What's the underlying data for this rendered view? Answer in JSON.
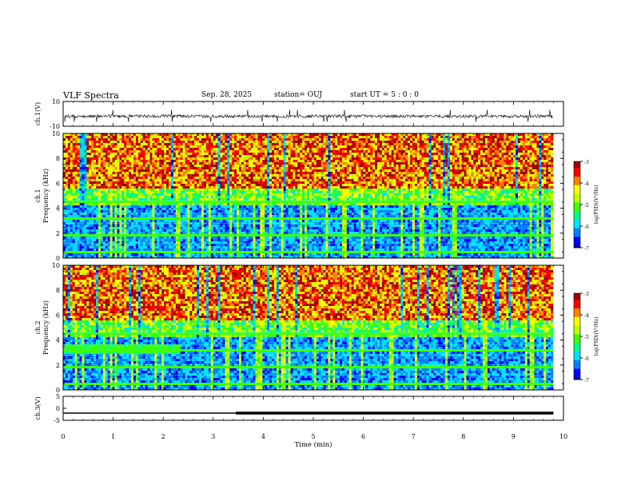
{
  "header": {
    "title": "VLF Spectra",
    "date": "Sep. 28, 2025",
    "station": "station= OUJ",
    "start_ut": "start  UT =   5 : 0  : 0"
  },
  "chart_data": [
    {
      "type": "line",
      "id": "ch1-waveform",
      "ylabel": "ch.1(V)",
      "ylim": [
        -10,
        10
      ],
      "yticks": [
        "10",
        "-10"
      ],
      "xlim": [
        0,
        10
      ],
      "note": "dense noisy waveform around ~0 V with sharp spikes"
    },
    {
      "type": "heatmap",
      "id": "ch1-spectrogram",
      "ylabel": "ch.1\nFrequency (kHz)",
      "ylabel_lines": [
        "ch.1",
        "Frequency (kHz)"
      ],
      "ylim": [
        0,
        10
      ],
      "yticks": [
        "0",
        "2",
        "4",
        "6",
        "8",
        "10"
      ],
      "xlim": [
        0,
        10
      ],
      "colorbar": {
        "label": "log(PSD)(V²/Hz)",
        "range": [
          -7,
          -3
        ],
        "ticks": [
          "-3",
          "-4",
          "-5",
          "-6",
          "-7"
        ]
      }
    },
    {
      "type": "heatmap",
      "id": "ch2-spectrogram",
      "ylabel_lines": [
        "ch.2",
        "Frequency (kHz)"
      ],
      "ylim": [
        0,
        10
      ],
      "yticks": [
        "0",
        "2",
        "4",
        "6",
        "8",
        "10"
      ],
      "xlim": [
        0,
        10
      ],
      "colorbar": {
        "label": "log(PSD)(V²/Hz)",
        "range": [
          -7,
          -3
        ],
        "ticks": [
          "-3",
          "-4",
          "-5",
          "-6",
          "-7"
        ]
      }
    },
    {
      "type": "line",
      "id": "ch3-signal",
      "ylabel": "ch.3(V)",
      "ylim": [
        -5,
        5
      ],
      "yticks": [
        "5",
        "0",
        "-5"
      ],
      "xlim": [
        0,
        10
      ],
      "x": [
        0,
        3.45,
        3.45,
        9.8
      ],
      "y": [
        -2,
        -2,
        -2,
        -2
      ],
      "note": "flat line at ~-2 V, thickens after ~3.45 min"
    }
  ],
  "xaxis": {
    "label": "Time (min)",
    "ticks": [
      "0",
      "1",
      "2",
      "3",
      "4",
      "5",
      "6",
      "7",
      "8",
      "9",
      "10"
    ]
  },
  "colors": {
    "cmap": [
      "#00008b",
      "#0000ff",
      "#0080ff",
      "#00e0ff",
      "#00ff80",
      "#40ff00",
      "#c0ff00",
      "#ffff00",
      "#ff8000",
      "#ff0000",
      "#a00000"
    ]
  }
}
